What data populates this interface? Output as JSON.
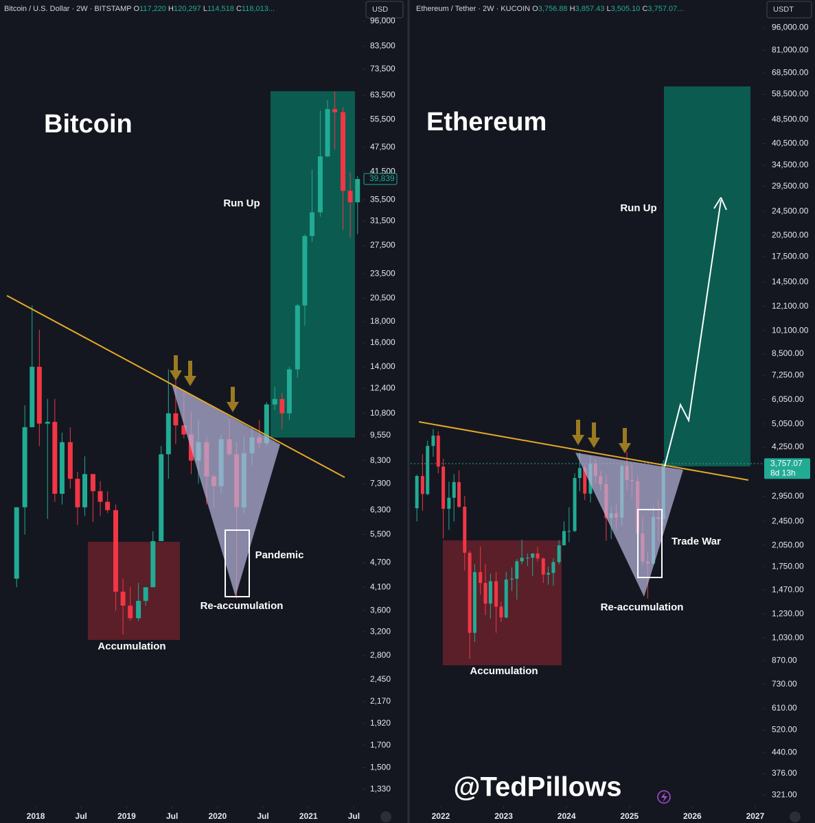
{
  "chart_data": [
    {
      "type": "candlestick",
      "symbol": "Bitcoin / U.S. Dollar · 2W · BITSTAMP",
      "ohlc": [
        {
          "label": "O",
          "value": "117,220"
        },
        {
          "label": "H",
          "value": "120,297"
        },
        {
          "label": "L",
          "value": "114,518"
        },
        {
          "label": "C",
          "value": "118,013..."
        }
      ],
      "currency": "USD",
      "title": "Bitcoin",
      "annotations": [
        "Run Up",
        "Pandemic",
        "Re-accumulation",
        "Accumulation"
      ],
      "log_scale": true,
      "up_color": "#22ab94",
      "down_color": "#f23645",
      "last_price": {
        "value": 39839,
        "label": "39,839"
      },
      "xlim": [
        2017.607,
        2021.595
      ],
      "xticks": [
        {
          "value": 2018,
          "label": "2018"
        },
        {
          "value": 2018.5,
          "label": "Jul"
        },
        {
          "value": 2019,
          "label": "2019"
        },
        {
          "value": 2019.5,
          "label": "Jul"
        },
        {
          "value": 2020,
          "label": "2020"
        },
        {
          "value": 2020.5,
          "label": "Jul"
        },
        {
          "value": 2021,
          "label": "2021"
        },
        {
          "value": 2021.5,
          "label": "Jul"
        }
      ],
      "ylim": [
        1213,
        108000
      ],
      "yticks": [
        {
          "value": 96000,
          "label": "96,000"
        },
        {
          "value": 83500,
          "label": "83,500"
        },
        {
          "value": 73500,
          "label": "73,500"
        },
        {
          "value": 63500,
          "label": "63,500"
        },
        {
          "value": 55500,
          "label": "55,500"
        },
        {
          "value": 47500,
          "label": "47,500"
        },
        {
          "value": 41500,
          "label": "41,500"
        },
        {
          "value": 35500,
          "label": "35,500"
        },
        {
          "value": 31500,
          "label": "31,500"
        },
        {
          "value": 27500,
          "label": "27,500"
        },
        {
          "value": 23500,
          "label": "23,500"
        },
        {
          "value": 20500,
          "label": "20,500"
        },
        {
          "value": 18000,
          "label": "18,000"
        },
        {
          "value": 16000,
          "label": "16,000"
        },
        {
          "value": 14000,
          "label": "14,000"
        },
        {
          "value": 12400,
          "label": "12,400"
        },
        {
          "value": 10800,
          "label": "10,800"
        },
        {
          "value": 9550,
          "label": "9,550"
        },
        {
          "value": 8300,
          "label": "8,300"
        },
        {
          "value": 7300,
          "label": "7,300"
        },
        {
          "value": 6300,
          "label": "6,300"
        },
        {
          "value": 5500,
          "label": "5,500"
        },
        {
          "value": 4700,
          "label": "4,700"
        },
        {
          "value": 4100,
          "label": "4,100"
        },
        {
          "value": 3600,
          "label": "3,600"
        },
        {
          "value": 3200,
          "label": "3,200"
        },
        {
          "value": 2800,
          "label": "2,800"
        },
        {
          "value": 2450,
          "label": "2,450"
        },
        {
          "value": 2170,
          "label": "2,170"
        },
        {
          "value": 1920,
          "label": "1,920"
        },
        {
          "value": 1700,
          "label": "1,700"
        },
        {
          "value": 1500,
          "label": "1,500"
        },
        {
          "value": 1330,
          "label": "1,330"
        }
      ],
      "x": [
        2017.79,
        2017.88,
        2017.96,
        2018.04,
        2018.13,
        2018.21,
        2018.29,
        2018.38,
        2018.46,
        2018.54,
        2018.63,
        2018.71,
        2018.79,
        2018.88,
        2018.96,
        2019.04,
        2019.13,
        2019.21,
        2019.29,
        2019.38,
        2019.46,
        2019.54,
        2019.63,
        2019.71,
        2019.79,
        2019.88,
        2019.96,
        2020.04,
        2020.13,
        2020.21,
        2020.29,
        2020.38,
        2020.46,
        2020.54,
        2020.63,
        2020.71,
        2020.79,
        2020.88,
        2020.96,
        2021.04,
        2021.13,
        2021.21,
        2021.29,
        2021.38,
        2021.46,
        2021.54
      ],
      "open": [
        4300,
        6400,
        10000,
        14000,
        10200,
        10300,
        6900,
        9200,
        7500,
        6400,
        7700,
        7000,
        6600,
        6300,
        4000,
        3700,
        3450,
        3800,
        4100,
        5300,
        8600,
        10800,
        10100,
        9600,
        8300,
        9200,
        7600,
        7200,
        9350,
        8600,
        6400,
        8650,
        9450,
        9150,
        11350,
        11700,
        10800,
        13800,
        19700,
        29000,
        33100,
        45200,
        58800,
        57800,
        37300,
        35000
      ],
      "high": [
        6400,
        11300,
        19700,
        17200,
        11700,
        11700,
        9700,
        10000,
        7800,
        8500,
        7700,
        7400,
        7000,
        6500,
        4300,
        4100,
        4200,
        4100,
        5600,
        9000,
        13800,
        13200,
        12300,
        10900,
        10400,
        9500,
        7700,
        9600,
        10500,
        9200,
        9500,
        10000,
        10400,
        11500,
        12500,
        12100,
        14000,
        19900,
        29300,
        42000,
        58300,
        61800,
        64900,
        59500,
        41300,
        40500
      ],
      "low": [
        4100,
        5500,
        10000,
        9000,
        6000,
        6600,
        6500,
        7100,
        5800,
        6100,
        5900,
        6100,
        6200,
        3600,
        3150,
        3400,
        3400,
        3700,
        4100,
        5300,
        7500,
        9100,
        9400,
        7700,
        7300,
        6500,
        6400,
        6900,
        8500,
        3850,
        6200,
        8100,
        8900,
        9000,
        11000,
        9900,
        10400,
        13200,
        17600,
        28100,
        32300,
        45000,
        47000,
        30000,
        28800,
        29300
      ],
      "close": [
        6400,
        10000,
        14000,
        10200,
        10300,
        6900,
        9200,
        7500,
        6400,
        7700,
        7000,
        6600,
        6300,
        4000,
        3700,
        3450,
        3800,
        4100,
        5300,
        8600,
        10800,
        10100,
        9600,
        8300,
        9200,
        7600,
        7200,
        9350,
        8600,
        6400,
        8650,
        9450,
        9150,
        11350,
        11700,
        10800,
        13800,
        19700,
        29000,
        33100,
        45200,
        58800,
        57800,
        37300,
        35000,
        39839
      ]
    },
    {
      "type": "candlestick",
      "symbol": "Ethereum / Tether · 2W · KUCOIN",
      "ohlc": [
        {
          "label": "O",
          "value": "3,756.88"
        },
        {
          "label": "H",
          "value": "3,857.43"
        },
        {
          "label": "L",
          "value": "3,505.10"
        },
        {
          "label": "C",
          "value": "3,757.07..."
        }
      ],
      "currency": "USDT",
      "title": "Ethereum",
      "annotations": [
        "Run Up",
        "Trade War",
        "Re-accumulation",
        "Accumulation"
      ],
      "log_scale": true,
      "up_color": "#22ab94",
      "down_color": "#f23645",
      "last_price": {
        "value": 3757.07,
        "label": "3,757.07"
      },
      "countdown": "8d 13h",
      "xlim": [
        2021.52,
        2027.11
      ],
      "xticks": [
        {
          "value": 2022,
          "label": "2022"
        },
        {
          "value": 2023,
          "label": "2023"
        },
        {
          "value": 2024,
          "label": "2024"
        },
        {
          "value": 2025,
          "label": "2025"
        },
        {
          "value": 2026,
          "label": "2026"
        },
        {
          "value": 2027,
          "label": "2027"
        }
      ],
      "ylim": [
        296,
        117800
      ],
      "yticks": [
        {
          "value": 96000,
          "label": "96,000.00"
        },
        {
          "value": 81000,
          "label": "81,000.00"
        },
        {
          "value": 68500,
          "label": "68,500.00"
        },
        {
          "value": 58500,
          "label": "58,500.00"
        },
        {
          "value": 48500,
          "label": "48,500.00"
        },
        {
          "value": 40500,
          "label": "40,500.00"
        },
        {
          "value": 34500,
          "label": "34,500.00"
        },
        {
          "value": 29500,
          "label": "29,500.00"
        },
        {
          "value": 24500,
          "label": "24,500.00"
        },
        {
          "value": 20500,
          "label": "20,500.00"
        },
        {
          "value": 17500,
          "label": "17,500.00"
        },
        {
          "value": 14500,
          "label": "14,500.00"
        },
        {
          "value": 12100,
          "label": "12,100.00"
        },
        {
          "value": 10100,
          "label": "10,100.00"
        },
        {
          "value": 8500,
          "label": "8,500.00"
        },
        {
          "value": 7250,
          "label": "7,250.00"
        },
        {
          "value": 6050,
          "label": "6,050.00"
        },
        {
          "value": 5050,
          "label": "5,050.00"
        },
        {
          "value": 4250,
          "label": "4,250.00"
        },
        {
          "value": 2950,
          "label": "2,950.00"
        },
        {
          "value": 2450,
          "label": "2,450.00"
        },
        {
          "value": 2050,
          "label": "2,050.00"
        },
        {
          "value": 1750,
          "label": "1,750.00"
        },
        {
          "value": 1470,
          "label": "1,470.00"
        },
        {
          "value": 1230,
          "label": "1,230.00"
        },
        {
          "value": 1030,
          "label": "1,030.00"
        },
        {
          "value": 870,
          "label": "870.00"
        },
        {
          "value": 730,
          "label": "730.00"
        },
        {
          "value": 610,
          "label": "610.00"
        },
        {
          "value": 520,
          "label": "520.00"
        },
        {
          "value": 440,
          "label": "440.00"
        },
        {
          "value": 376,
          "label": "376.00"
        },
        {
          "value": 321,
          "label": "321.00"
        }
      ],
      "x": [
        2021.62,
        2021.71,
        2021.79,
        2021.88,
        2021.96,
        2022.04,
        2022.13,
        2022.21,
        2022.29,
        2022.38,
        2022.46,
        2022.54,
        2022.63,
        2022.71,
        2022.79,
        2022.88,
        2022.96,
        2023.04,
        2023.13,
        2023.21,
        2023.29,
        2023.38,
        2023.46,
        2023.54,
        2023.63,
        2023.71,
        2023.79,
        2023.88,
        2023.96,
        2024.04,
        2024.13,
        2024.21,
        2024.29,
        2024.38,
        2024.46,
        2024.54,
        2024.63,
        2024.71,
        2024.79,
        2024.88,
        2024.96,
        2025.04,
        2025.13,
        2025.21,
        2025.29,
        2025.38,
        2025.46,
        2025.54
      ],
      "open": [
        2700,
        3430,
        3000,
        4290,
        4630,
        3680,
        2690,
        2920,
        3280,
        2730,
        1940,
        1070,
        1680,
        1550,
        1330,
        1570,
        1300,
        1200,
        1590,
        1600,
        1820,
        1870,
        1870,
        1930,
        1860,
        1650,
        1670,
        1810,
        2050,
        2280,
        2280,
        3380,
        3640,
        3010,
        3760,
        3430,
        3230,
        2510,
        2600,
        2520,
        3700,
        3330,
        3300,
        2240,
        1820,
        1790,
        2530,
        2490
      ],
      "high": [
        3470,
        4030,
        4460,
        4870,
        4780,
        3900,
        3290,
        3480,
        3580,
        2960,
        1970,
        1780,
        2030,
        1790,
        1660,
        1680,
        1350,
        1680,
        1740,
        1850,
        2140,
        1930,
        1930,
        2030,
        1870,
        1750,
        1860,
        2130,
        2450,
        2720,
        3500,
        4090,
        3730,
        3980,
        3890,
        3560,
        3470,
        2730,
        2770,
        3740,
        4110,
        3740,
        3440,
        2550,
        1960,
        2740,
        2880,
        3860
      ],
      "low": [
        2450,
        2650,
        2970,
        3960,
        3500,
        2160,
        2300,
        2450,
        2710,
        1700,
        880,
        1000,
        1420,
        1220,
        1190,
        1070,
        1160,
        1190,
        1460,
        1370,
        1780,
        1760,
        1630,
        1820,
        1550,
        1530,
        1520,
        1780,
        2050,
        2100,
        2260,
        3060,
        2870,
        2820,
        3250,
        3090,
        2120,
        2150,
        2310,
        2360,
        3100,
        2920,
        2120,
        1760,
        1380,
        1770,
        2110,
        2370
      ],
      "close": [
        3430,
        3000,
        4290,
        4630,
        3680,
        2690,
        2920,
        3280,
        2730,
        1940,
        1070,
        1680,
        1550,
        1330,
        1570,
        1300,
        1200,
        1590,
        1600,
        1820,
        1870,
        1870,
        1930,
        1860,
        1650,
        1670,
        1810,
        2050,
        2280,
        2280,
        3380,
        3640,
        3010,
        3760,
        3430,
        3230,
        2510,
        2600,
        2520,
        3700,
        3330,
        3300,
        2240,
        1820,
        1790,
        2530,
        2490,
        3757.07
      ]
    }
  ],
  "watermark": "@TedPillows"
}
